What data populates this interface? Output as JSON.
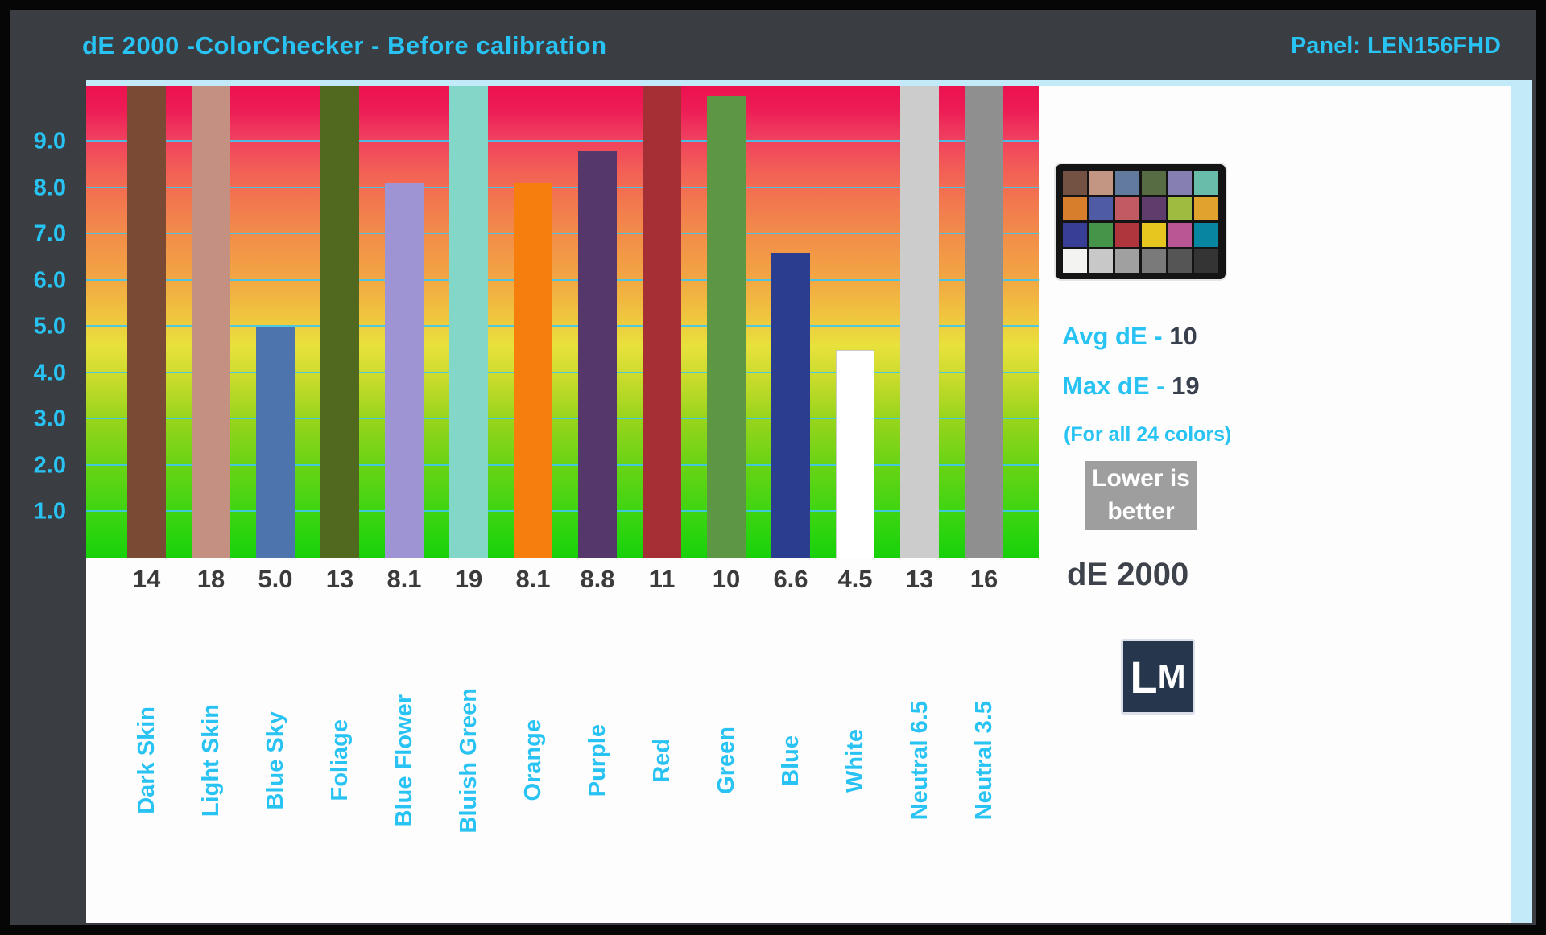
{
  "header": {
    "title": "dE 2000 -ColorChecker - Before calibration",
    "panel_label": "Panel: LEN156FHD"
  },
  "chart_data": {
    "type": "bar",
    "title": "dE 2000 - ColorChecker - Before calibration",
    "panel": "LEN156FHD",
    "xlabel": "",
    "ylabel": "dE 2000",
    "ylim": [
      0,
      10.2
    ],
    "grid": true,
    "legend_position": "none",
    "yticks": [
      {
        "value": 9,
        "label": "9.0"
      },
      {
        "value": 8,
        "label": "8.0"
      },
      {
        "value": 7,
        "label": "7.0"
      },
      {
        "value": 6,
        "label": "6.0"
      },
      {
        "value": 5,
        "label": "5.0"
      },
      {
        "value": 4,
        "label": "4.0"
      },
      {
        "value": 3,
        "label": "3.0"
      },
      {
        "value": 2,
        "label": "2.0"
      },
      {
        "value": 1,
        "label": "1.0"
      }
    ],
    "categories": [
      "Dark Skin",
      "Light Skin",
      "Blue Sky",
      "Foliage",
      "Blue Flower",
      "Bluish Green",
      "Orange",
      "Purple",
      "Red",
      "Green",
      "Blue",
      "White",
      "Neutral 6.5",
      "Neutral 3.5"
    ],
    "values": [
      14,
      18,
      5.0,
      13,
      8.1,
      19,
      8.1,
      8.8,
      11,
      10,
      6.6,
      4.5,
      13,
      16
    ],
    "value_labels": [
      "14",
      "18",
      "5.0",
      "13",
      "8.1",
      "19",
      "8.1",
      "8.8",
      "11",
      "10",
      "6.6",
      "4.5",
      "13",
      "16"
    ],
    "bar_colors": [
      "#7b4a35",
      "#c49081",
      "#4d74ad",
      "#50691f",
      "#9e94d4",
      "#82d7c8",
      "#f57e0c",
      "#55376b",
      "#a43036",
      "#5d9744",
      "#2a3d8f",
      "#ffffff",
      "#cccccc",
      "#8f8f8f"
    ]
  },
  "sidebar": {
    "avg_label": "Avg dE - ",
    "avg_value": "10",
    "max_label": "Max dE - ",
    "max_value": "19",
    "note": "(For all 24 colors)",
    "lower_line1": "Lower is",
    "lower_line2": "better",
    "de2000_label": "dE 2000",
    "logo_l": "L",
    "logo_m": "M",
    "colorchecker_patches": [
      "#735244",
      "#c29682",
      "#627a9d",
      "#576c43",
      "#8580b1",
      "#67bdaa",
      "#d67e2c",
      "#505ba6",
      "#c15a63",
      "#5e3c6c",
      "#9dbc40",
      "#e0a32e",
      "#383d96",
      "#469449",
      "#af363c",
      "#e7c71f",
      "#bb5695",
      "#0885a1",
      "#f3f3f2",
      "#c8c8c8",
      "#a0a0a0",
      "#7a7a7a",
      "#555555",
      "#343434"
    ]
  },
  "colors": {
    "accent_cyan": "#28c3f3",
    "value_text": "#3b3b3b",
    "background_dark": "#3a3d41",
    "pale_border": "#c3eaf9",
    "gradient_top": "#ec1150",
    "gradient_bottom": "#17d10a"
  }
}
